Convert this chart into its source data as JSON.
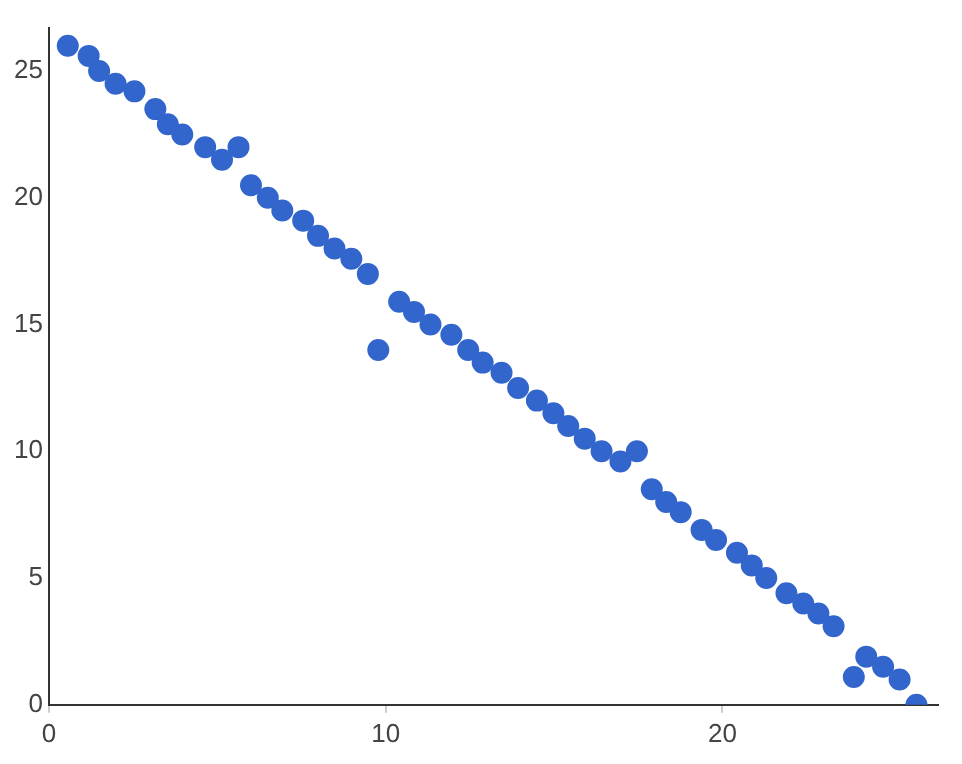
{
  "chart_data": {
    "type": "scatter",
    "x": [
      0.56,
      1.18,
      1.49,
      1.98,
      2.54,
      3.16,
      3.53,
      3.96,
      4.64,
      5.14,
      5.63,
      6.0,
      6.5,
      6.93,
      7.55,
      7.99,
      8.48,
      8.98,
      9.47,
      9.78,
      10.4,
      10.84,
      11.33,
      11.95,
      12.45,
      12.88,
      13.44,
      13.93,
      14.49,
      14.98,
      15.42,
      15.91,
      16.41,
      16.97,
      17.46,
      17.9,
      18.33,
      18.76,
      19.38,
      19.81,
      20.43,
      20.87,
      21.3,
      21.9,
      22.4,
      22.85,
      23.3,
      23.9,
      24.27,
      24.77,
      25.26,
      25.76
    ],
    "series": [
      {
        "color": "#3366cc",
        "values": [
          26.0,
          25.6,
          25.0,
          24.5,
          24.2,
          23.5,
          22.9,
          22.5,
          22.0,
          21.5,
          22.0,
          20.5,
          20.0,
          19.5,
          19.1,
          18.5,
          18.0,
          17.6,
          17.0,
          14.0,
          15.9,
          15.5,
          15.0,
          14.6,
          14.0,
          13.5,
          13.1,
          12.5,
          12.0,
          11.5,
          11.0,
          10.5,
          10.0,
          9.6,
          10.0,
          8.5,
          8.0,
          7.6,
          6.9,
          6.5,
          6.0,
          5.5,
          5.0,
          4.4,
          4.0,
          3.6,
          3.1,
          1.1,
          1.9,
          1.5,
          1.0,
          0.0
        ]
      }
    ],
    "xlim": [
      0,
      26.4
    ],
    "ylim": [
      0,
      26.7
    ],
    "xticks": [
      0,
      10,
      20
    ],
    "yticks": [
      0,
      5,
      10,
      15,
      20,
      25
    ],
    "grid": false,
    "legend": false,
    "marker": "circle"
  }
}
